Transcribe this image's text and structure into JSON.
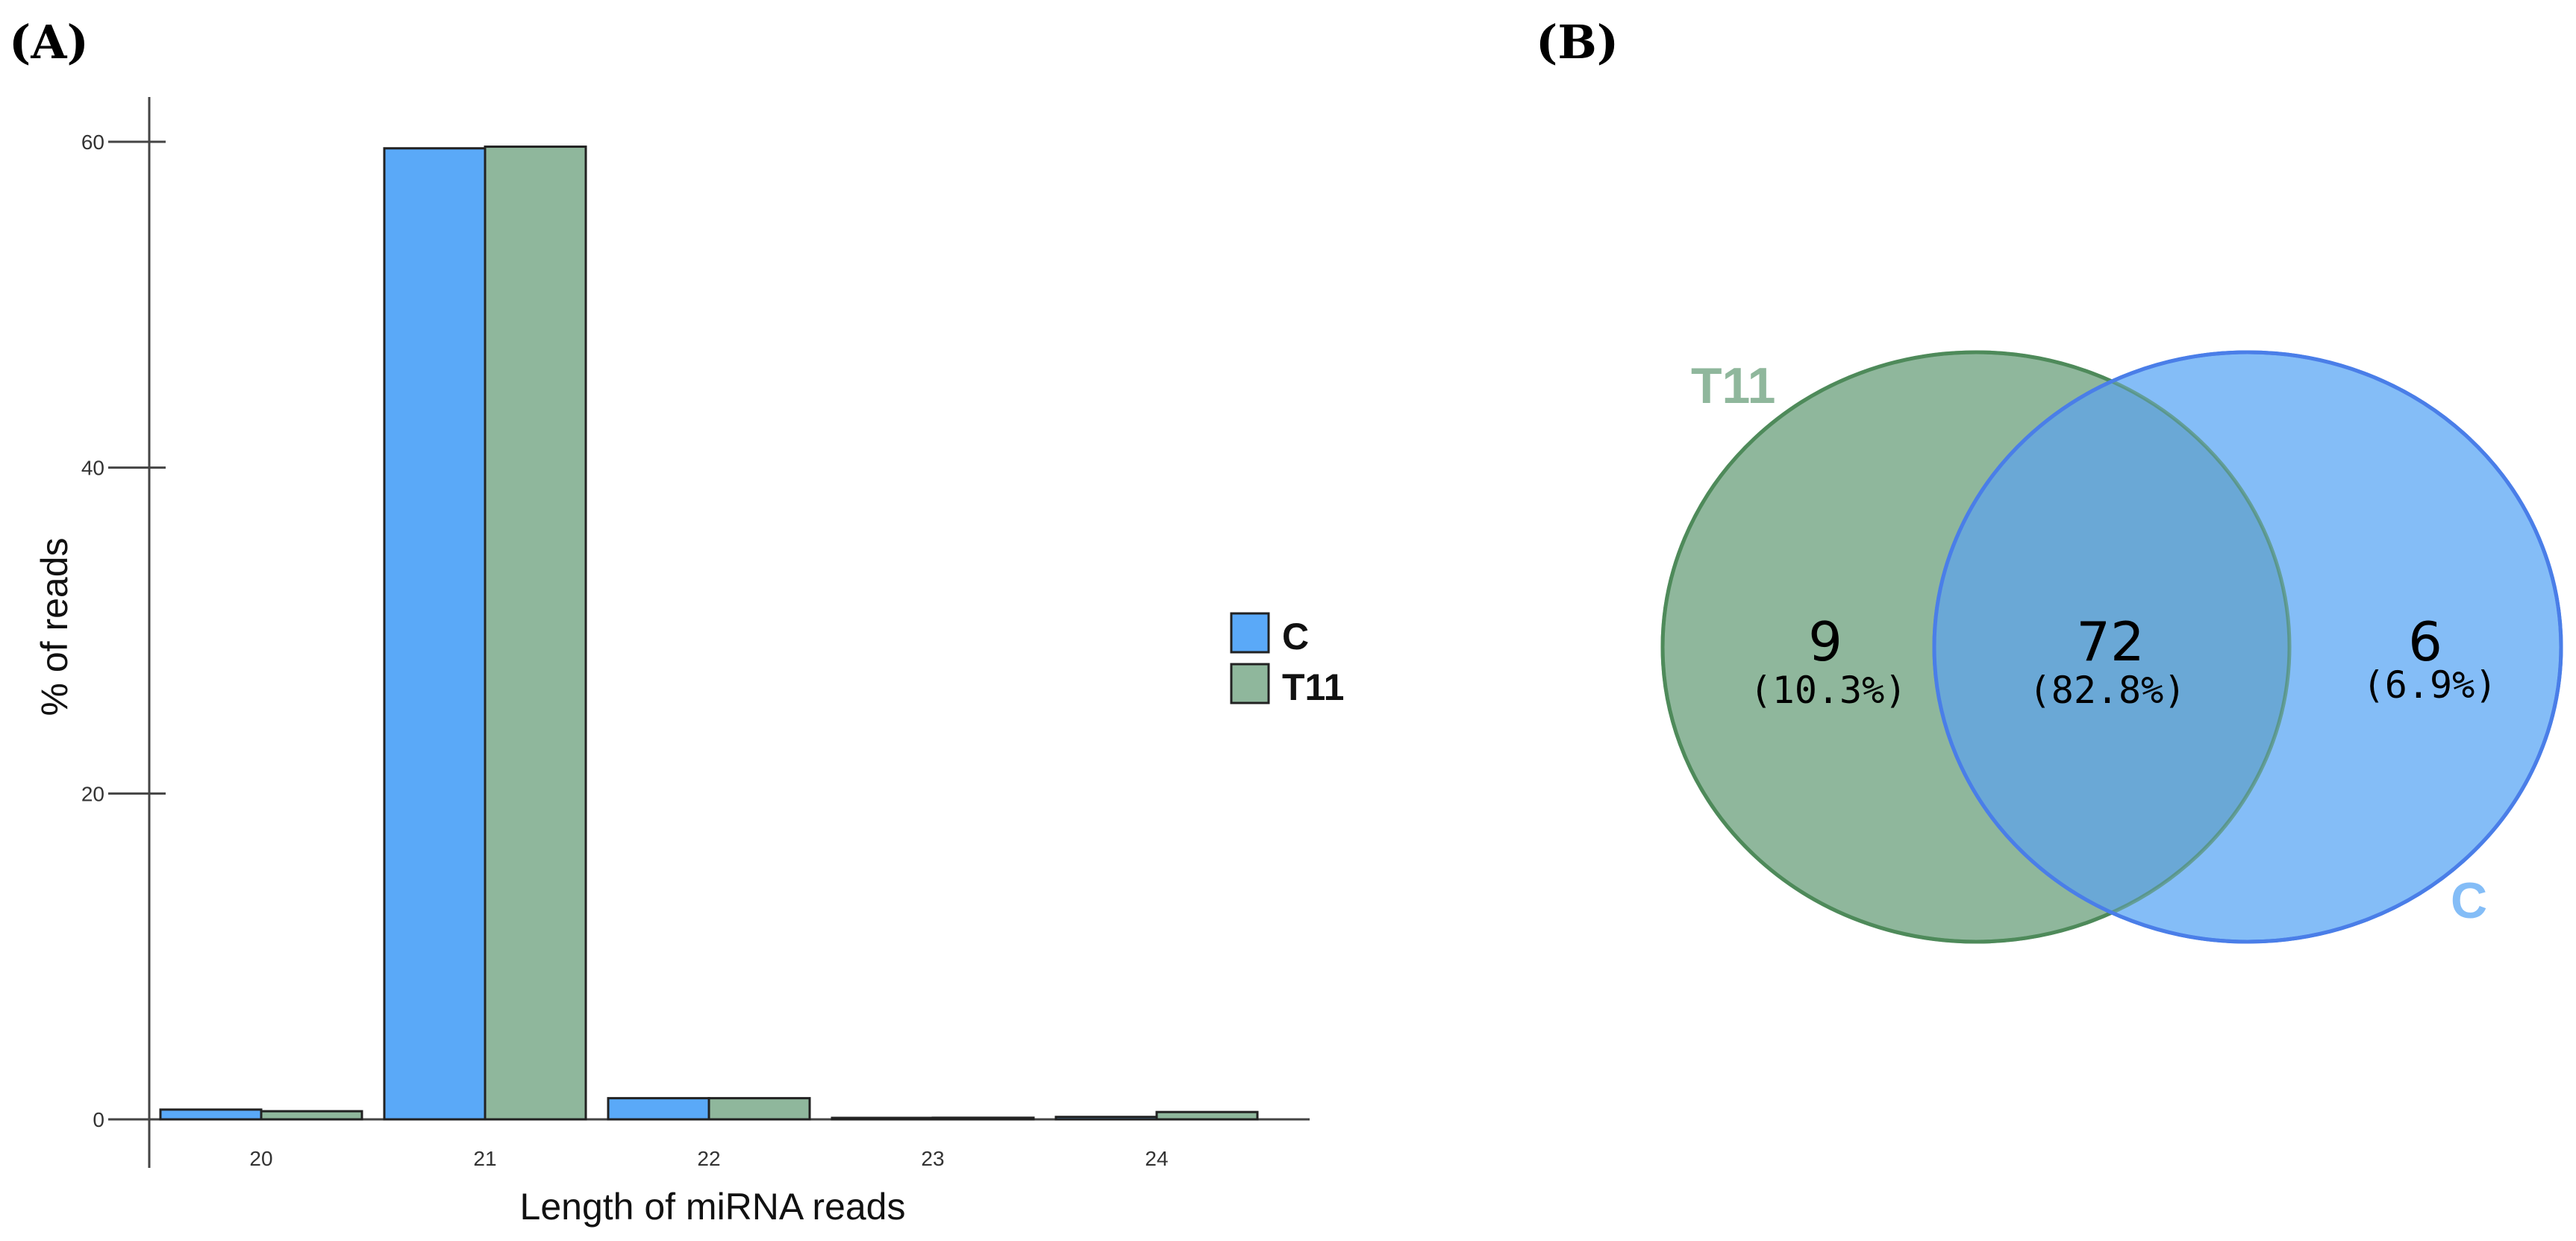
{
  "panels": {
    "a_label": "(A)",
    "b_label": "(B)"
  },
  "colors": {
    "C": "#5aa9f8",
    "T11": "#8fb79c",
    "venn_T11_fill": "#8fb79c",
    "venn_T11_stroke": "#4f8a5a",
    "venn_C_fill": "#84bdf7",
    "venn_C_stroke": "#4a7ee8",
    "venn_overlap_fill": "#6aa8d6"
  },
  "chart_data": [
    {
      "type": "bar",
      "categories": [
        "20",
        "21",
        "22",
        "23",
        "24"
      ],
      "series": [
        {
          "name": "C",
          "values": [
            0.6,
            59.6,
            1.3,
            0.05,
            0.15
          ]
        },
        {
          "name": "T11",
          "values": [
            0.5,
            59.7,
            1.3,
            0.1,
            0.45
          ]
        }
      ],
      "title": "",
      "xlabel": "Length of miRNA reads",
      "ylabel": "% of reads",
      "ylim": [
        0,
        60
      ],
      "yticks": [
        "0",
        "20",
        "40",
        "60"
      ],
      "legend": "right",
      "grid": false
    },
    {
      "type": "venn",
      "sets": [
        "T11",
        "C"
      ],
      "regions": [
        {
          "name": "T11 only",
          "count": "9",
          "percent": "(10.3%)"
        },
        {
          "name": "T11 and C",
          "count": "72",
          "percent": "(82.8%)"
        },
        {
          "name": "C only",
          "count": "6",
          "percent": "(6.9%)"
        }
      ]
    }
  ]
}
